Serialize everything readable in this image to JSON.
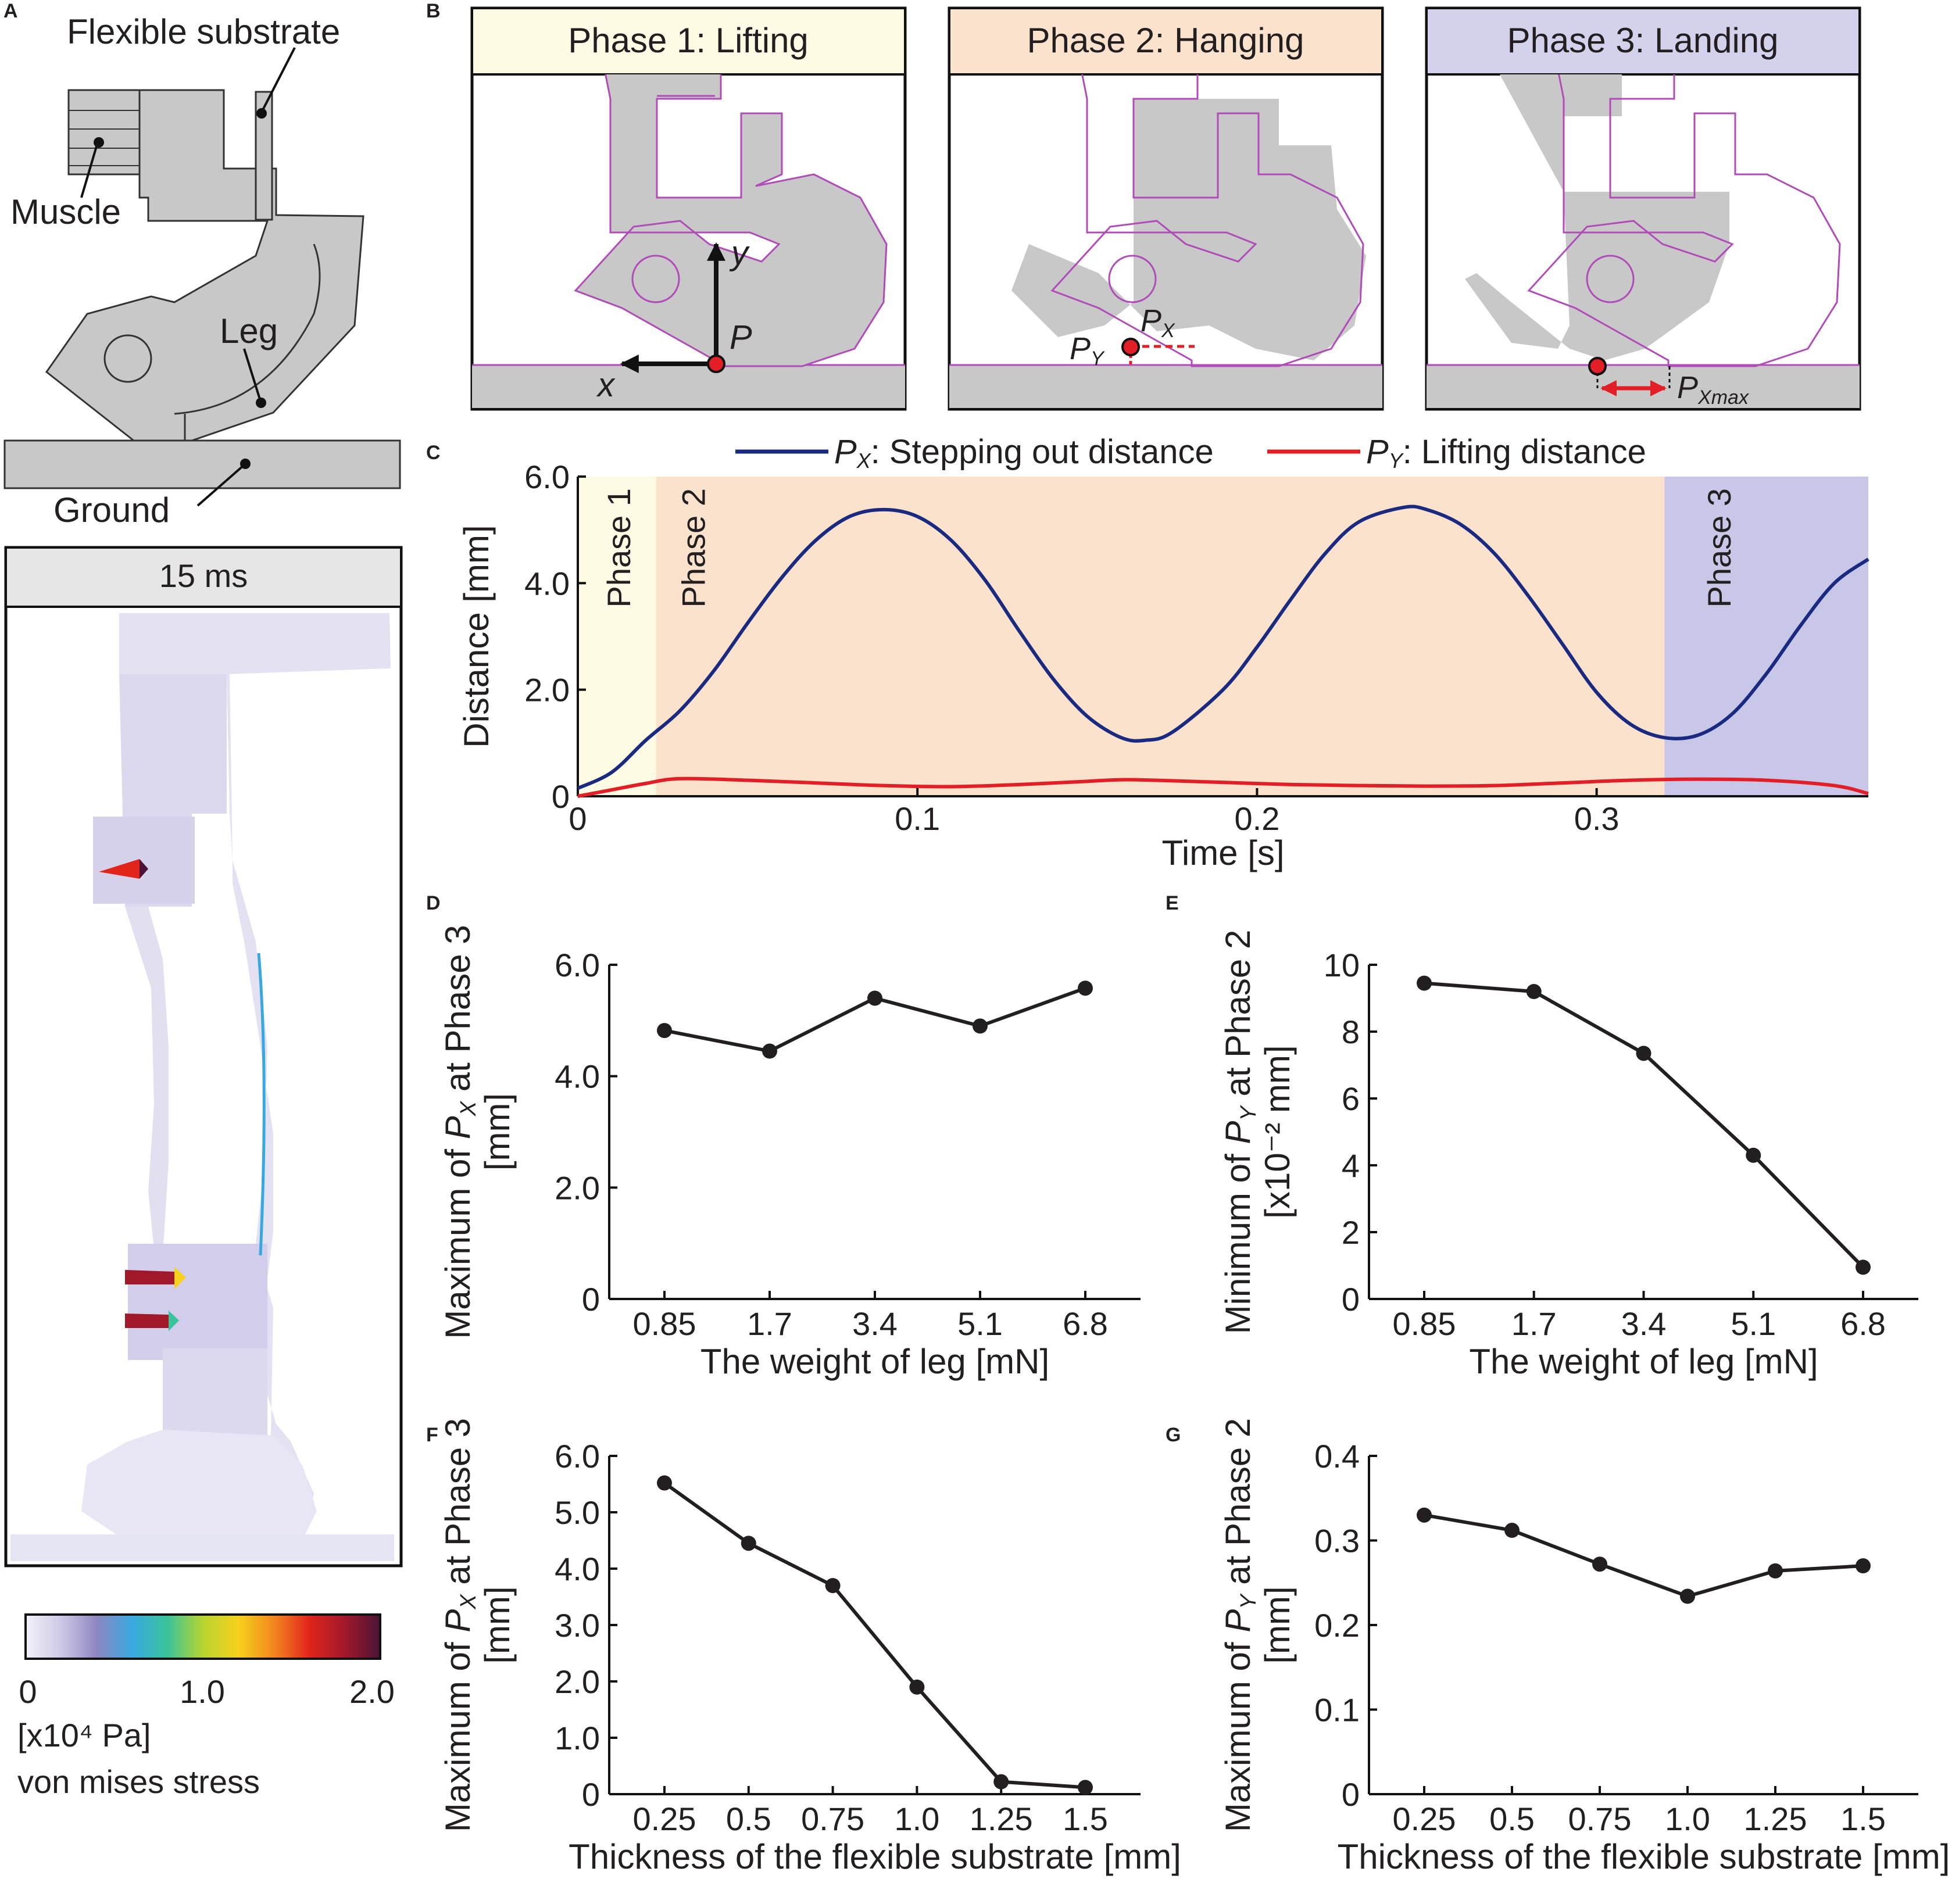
{
  "panels": {
    "A": {
      "letter": "A",
      "labels": {
        "flexible_substrate": "Flexible substrate",
        "muscle": "Muscle",
        "leg": "Leg",
        "ground": "Ground"
      },
      "sim_title": "15 ms",
      "colorbar": {
        "tick_min": "0",
        "tick_mid": "1.0",
        "tick_max": "2.0",
        "unit_label": "[x10⁴ Pa]",
        "caption": "von mises stress",
        "colors": [
          "#f2f1f8",
          "#cfc9e6",
          "#8e87c2",
          "#3aa8e0",
          "#39c49b",
          "#b8d430",
          "#f6d21e",
          "#f2871f",
          "#e1251b",
          "#a2182b",
          "#4a1436"
        ]
      }
    },
    "B": {
      "letter": "B",
      "phases": [
        {
          "title": "Phase 1: Lifting",
          "color": "#fdfbe4"
        },
        {
          "title": "Phase 2: Hanging",
          "color": "#fbe2cd"
        },
        {
          "title": "Phase 3: Landing",
          "color": "#d3d1ec"
        }
      ],
      "annotations": {
        "y_axis": "y",
        "x_axis": "x",
        "point": "P",
        "px": "P",
        "px_sub": "X",
        "py": "P",
        "py_sub": "Y",
        "pxmax": "P",
        "pxmax_sub": "Xmax"
      },
      "colors": {
        "outline": "#b04cb8",
        "solid": "#c8c8c8",
        "marker": "#e21f26",
        "arrow": "#e21f26"
      }
    },
    "C": {
      "letter": "C",
      "legend": [
        {
          "sym": "P",
          "sub": "X",
          "text": ": Stepping out distance",
          "color": "#1a2a80"
        },
        {
          "sym": "P",
          "sub": "Y",
          "text": ": Lifting distance",
          "color": "#e21f26"
        }
      ],
      "phase_labels": [
        "Phase 1",
        "Phase 2",
        "Phase 3"
      ],
      "phase_colors": [
        "#fdfbe4",
        "#fbe2cd",
        "#c9c7e8"
      ]
    },
    "D": {
      "letter": "D"
    },
    "E": {
      "letter": "E"
    },
    "F": {
      "letter": "F"
    },
    "G": {
      "letter": "G"
    }
  },
  "chart_data": [
    {
      "id": "C",
      "type": "line",
      "xlabel": "Time [s]",
      "ylabel": "Distance [mm]",
      "xlim": [
        0,
        0.38
      ],
      "ylim": [
        0,
        6.0
      ],
      "xticks": [
        "0",
        "0.1",
        "0.2",
        "0.3"
      ],
      "xtick_values": [
        0,
        0.1,
        0.2,
        0.3
      ],
      "yticks": [
        "0",
        "2.0",
        "4.0",
        "6.0"
      ],
      "ytick_values": [
        0,
        2.0,
        4.0,
        6.0
      ],
      "phase_bounds": [
        [
          0,
          0.023
        ],
        [
          0.023,
          0.32
        ],
        [
          0.32,
          0.38
        ]
      ],
      "series": [
        {
          "name": "Px",
          "color": "#1a2a80",
          "x": [
            0,
            0.01,
            0.02,
            0.03,
            0.04,
            0.05,
            0.06,
            0.07,
            0.08,
            0.09,
            0.1,
            0.11,
            0.12,
            0.13,
            0.14,
            0.15,
            0.16,
            0.167,
            0.175,
            0.19,
            0.2,
            0.21,
            0.22,
            0.23,
            0.243,
            0.25,
            0.26,
            0.27,
            0.28,
            0.29,
            0.3,
            0.31,
            0.32,
            0.33,
            0.34,
            0.35,
            0.36,
            0.37,
            0.38
          ],
          "y": [
            0.15,
            0.45,
            1.05,
            1.6,
            2.35,
            3.25,
            4.1,
            4.8,
            5.25,
            5.38,
            5.25,
            4.8,
            4.05,
            3.1,
            2.2,
            1.5,
            1.1,
            1.05,
            1.2,
            2.0,
            2.8,
            3.7,
            4.55,
            5.15,
            5.42,
            5.38,
            5.1,
            4.55,
            3.75,
            2.85,
            1.95,
            1.35,
            1.1,
            1.15,
            1.55,
            2.3,
            3.2,
            4.0,
            4.45
          ]
        },
        {
          "name": "Py",
          "color": "#e21f26",
          "x": [
            0,
            0.01,
            0.02,
            0.03,
            0.05,
            0.07,
            0.09,
            0.11,
            0.13,
            0.15,
            0.16,
            0.17,
            0.19,
            0.21,
            0.23,
            0.25,
            0.27,
            0.29,
            0.31,
            0.33,
            0.35,
            0.37,
            0.38
          ],
          "y": [
            0.0,
            0.12,
            0.24,
            0.33,
            0.3,
            0.25,
            0.2,
            0.18,
            0.22,
            0.28,
            0.31,
            0.3,
            0.26,
            0.22,
            0.2,
            0.19,
            0.2,
            0.25,
            0.3,
            0.32,
            0.3,
            0.2,
            0.05
          ]
        }
      ]
    },
    {
      "id": "D",
      "type": "line",
      "categories": [
        "0.85",
        "1.7",
        "3.4",
        "5.1",
        "6.8"
      ],
      "values": [
        4.82,
        4.45,
        5.4,
        4.9,
        5.58
      ],
      "xlabel": "The weight of leg [mN]",
      "ylabel_parts": [
        "Maximum of ",
        "P",
        "X",
        " at Phase 3"
      ],
      "ylabel_unit": "[mm]",
      "ylim": [
        0,
        6.0
      ],
      "yticks": [
        "0",
        "2.0",
        "4.0",
        "6.0"
      ],
      "ytick_values": [
        0,
        2.0,
        4.0,
        6.0
      ]
    },
    {
      "id": "E",
      "type": "line",
      "categories": [
        "0.85",
        "1.7",
        "3.4",
        "5.1",
        "6.8"
      ],
      "values": [
        9.45,
        9.2,
        7.35,
        4.3,
        0.95
      ],
      "xlabel": "The weight of leg [mN]",
      "ylabel_parts": [
        "Minimum of ",
        "P",
        "Y",
        " at Phase 2"
      ],
      "ylabel_unit": "[x10⁻² mm]",
      "ylim": [
        0,
        10
      ],
      "yticks": [
        "0",
        "2",
        "4",
        "6",
        "8",
        "10"
      ],
      "ytick_values": [
        0,
        2,
        4,
        6,
        8,
        10
      ]
    },
    {
      "id": "F",
      "type": "line",
      "categories": [
        "0.25",
        "0.5",
        "0.75",
        "1.0",
        "1.25",
        "1.5"
      ],
      "values": [
        5.52,
        4.45,
        3.7,
        1.9,
        0.22,
        0.12
      ],
      "xlabel": "Thickness of the flexible substrate [mm]",
      "ylabel_parts": [
        "Maximum of ",
        "P",
        "X",
        " at Phase 3"
      ],
      "ylabel_unit": "[mm]",
      "ylim": [
        0,
        6.0
      ],
      "yticks": [
        "0",
        "1.0",
        "2.0",
        "3.0",
        "4.0",
        "5.0",
        "6.0"
      ],
      "ytick_values": [
        0,
        1,
        2,
        3,
        4,
        5,
        6
      ]
    },
    {
      "id": "G",
      "type": "line",
      "categories": [
        "0.25",
        "0.5",
        "0.75",
        "1.0",
        "1.25",
        "1.5"
      ],
      "values": [
        0.33,
        0.312,
        0.272,
        0.234,
        0.264,
        0.27
      ],
      "xlabel": "Thickness of the flexible substrate [mm]",
      "ylabel_parts": [
        "Maximum of ",
        "P",
        "Y",
        " at Phase 2"
      ],
      "ylabel_unit": "[mm]",
      "ylim": [
        0,
        0.4
      ],
      "yticks": [
        "0",
        "0.1",
        "0.2",
        "0.3",
        "0.4"
      ],
      "ytick_values": [
        0,
        0.1,
        0.2,
        0.3,
        0.4
      ]
    }
  ]
}
